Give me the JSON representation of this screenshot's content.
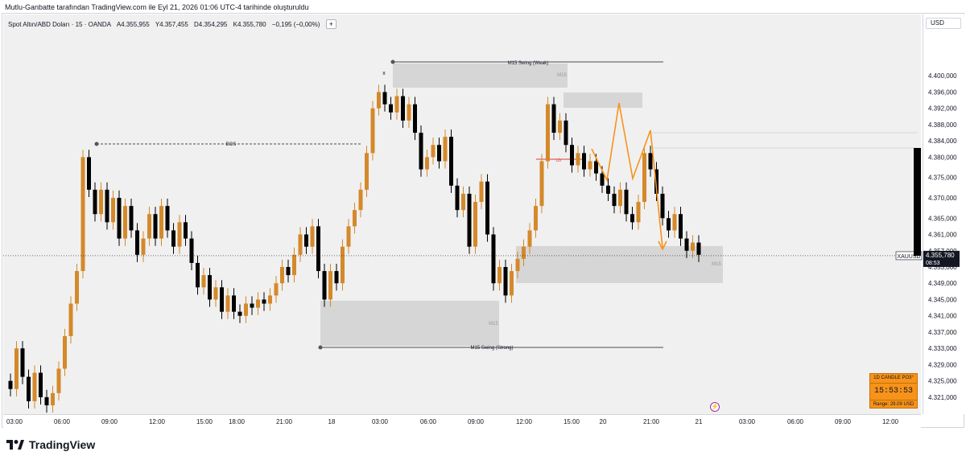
{
  "header": {
    "published_line": "Mutlu-Ganbatte tarafından TradingView.com ile Eyl 21, 2026 01:06 UTC-4 tarihinde oluşturuldu"
  },
  "legend": {
    "symbol": "Spot Altın/ABD Doları · 15 · OANDA",
    "open": "A4.355,955",
    "high": "Y4.357,455",
    "low": "D4.354,295",
    "close": "K4.355,780",
    "change": "−0,195 (−0,00%)",
    "plus": "+"
  },
  "price_axis": {
    "currency": "USD",
    "ticks": [
      "4.400,000",
      "4.396,000",
      "4.392,000",
      "4.388,000",
      "4.384,000",
      "4.380,000",
      "4.375,000",
      "4.370,000",
      "4.365,000",
      "4.361,000",
      "4.357,000",
      "4.353,000",
      "4.349,000",
      "4.345,000",
      "4.341,000",
      "4.337,000",
      "4.333,000",
      "4.329,000",
      "4.325,000",
      "4.321,000"
    ],
    "current_symbol": "XAUUSD",
    "current_price": "4.355,780",
    "countdown": "08:53"
  },
  "time_axis": {
    "labels": [
      "03:00",
      "06:00",
      "09:00",
      "12:00",
      "15:00",
      "18:00",
      "21:00",
      "18",
      "03:00",
      "06:00",
      "09:00",
      "12:00",
      "15:00",
      "20",
      "21:00",
      "21",
      "03:00",
      "06:00",
      "09:00",
      "12:00"
    ]
  },
  "annotations": {
    "swing_weak": "M15 Swing (Weak)",
    "swing_strong": "M15 Swing (Strong)",
    "bos": "BOS",
    "choch": "ch",
    "m15": "M15",
    "x_mark": "x"
  },
  "widget": {
    "title": "1D CANDLE PO3°",
    "timer": "15:53:53",
    "range": "Range: 29.09 USD"
  },
  "brand": {
    "name": "TradingView"
  },
  "colors": {
    "up": "#d4892a",
    "down": "#000000",
    "zone": "#d3d3d3",
    "projection": "#f7931a",
    "choch": "#e53935",
    "widget": "#f7931a"
  },
  "chart_data": {
    "type": "candlestick",
    "symbol": "XAUUSD",
    "ylim": [
      4319,
      4404
    ],
    "close_series": [
      4323,
      4333,
      4326,
      4320,
      4327,
      4321,
      4319,
      4322,
      4328,
      4336,
      4344,
      4352,
      4380,
      4372,
      4366,
      4372,
      4364,
      4370,
      4360,
      4368,
      4362,
      4356,
      4360,
      4366,
      4360,
      4368,
      4362,
      4358,
      4364,
      4360,
      4354,
      4348,
      4351,
      4345,
      4348,
      4342,
      4346,
      4342,
      4341,
      4344,
      4343,
      4345,
      4344,
      4346,
      4349,
      4353,
      4351,
      4356,
      4361,
      4358,
      4363,
      4352,
      4345,
      4352,
      4349,
      4358,
      4363,
      4367,
      4372,
      4381,
      4392,
      4396,
      4393,
      4391,
      4395,
      4389,
      4393,
      4386,
      4377,
      4380,
      4383,
      4379,
      4385,
      4373,
      4367,
      4371,
      4358,
      4369,
      4374,
      4361,
      4349,
      4353,
      4346,
      4352,
      4355,
      4358,
      4362,
      4368,
      4379,
      4393,
      4386,
      4389,
      4383,
      4378,
      4381,
      4377,
      4379,
      4376,
      4373,
      4371,
      4368,
      4372,
      4366,
      4364,
      4369,
      4381,
      4377,
      4371,
      4365,
      4362,
      4366,
      4360,
      4357,
      4359,
      4356
    ]
  }
}
